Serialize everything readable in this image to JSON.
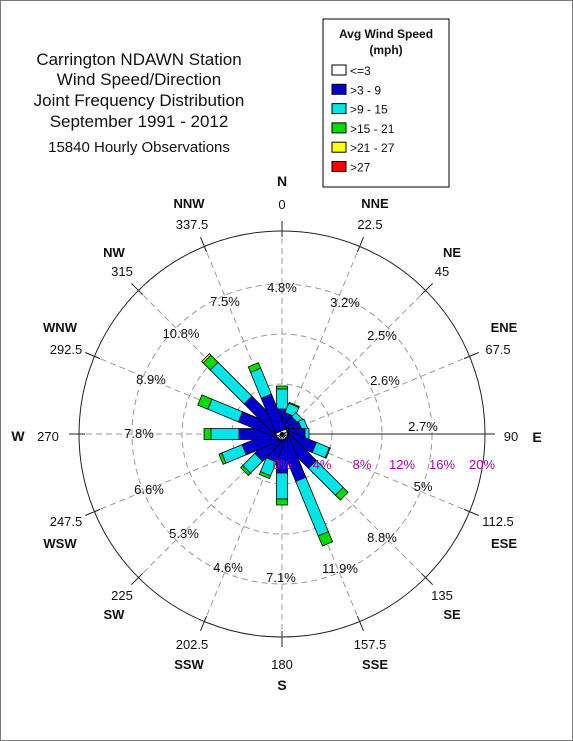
{
  "title": {
    "lines": [
      "Carrington NDAWN Station",
      "Wind Speed/Direction",
      "Joint Frequency Distribution",
      "September 1991 - 2012"
    ],
    "subtitle": "15840 Hourly Observations"
  },
  "legend": {
    "title_lines": [
      "Avg Wind Speed",
      "(mph)"
    ],
    "items": [
      {
        "label": "<=3",
        "color": "#ffffff"
      },
      {
        "label": ">3 - 9",
        "color": "#0000cc"
      },
      {
        "label": ">9 - 15",
        "color": "#00e5e5"
      },
      {
        "label": ">15 - 21",
        "color": "#00dd00"
      },
      {
        "label": ">21 - 27",
        "color": "#ffff00"
      },
      {
        "label": ">27",
        "color": "#ff0000"
      }
    ]
  },
  "compass": [
    {
      "name": "N",
      "deg": "0"
    },
    {
      "name": "NNE",
      "deg": "22.5"
    },
    {
      "name": "NE",
      "deg": "45"
    },
    {
      "name": "ENE",
      "deg": "67.5"
    },
    {
      "name": "E",
      "deg": "90"
    },
    {
      "name": "ESE",
      "deg": "112.5"
    },
    {
      "name": "SE",
      "deg": "135"
    },
    {
      "name": "SSE",
      "deg": "157.5"
    },
    {
      "name": "S",
      "deg": "180"
    },
    {
      "name": "SSW",
      "deg": "202.5"
    },
    {
      "name": "SW",
      "deg": "225"
    },
    {
      "name": "WSW",
      "deg": "247.5"
    },
    {
      "name": "W",
      "deg": "270"
    },
    {
      "name": "WNW",
      "deg": "292.5"
    },
    {
      "name": "NW",
      "deg": "315"
    },
    {
      "name": "NNW",
      "deg": "337.5"
    }
  ],
  "chart_data": {
    "type": "wind rose (polar stacked bar)",
    "radial_axis": {
      "ticks": [
        0,
        4,
        8,
        12,
        16,
        20
      ],
      "tick_labels": [
        "0%",
        "4%",
        "8%",
        "12%",
        "16%",
        "20%"
      ],
      "max": 20,
      "unit": "%"
    },
    "speed_classes": [
      "<=3",
      ">3 - 9",
      ">9 - 15",
      ">15 - 21",
      ">21 - 27",
      ">27"
    ],
    "directions": [
      {
        "dir": "N",
        "total": 4.8,
        "segments": [
          0.3,
          2.2,
          2.0,
          0.3,
          0.0,
          0.0
        ]
      },
      {
        "dir": "NNE",
        "total": 3.2,
        "segments": [
          0.3,
          1.8,
          1.0,
          0.1,
          0.0,
          0.0
        ]
      },
      {
        "dir": "NE",
        "total": 2.5,
        "segments": [
          0.3,
          1.6,
          0.6,
          0.0,
          0.0,
          0.0
        ]
      },
      {
        "dir": "ENE",
        "total": 2.6,
        "segments": [
          0.3,
          1.7,
          0.6,
          0.0,
          0.0,
          0.0
        ]
      },
      {
        "dir": "E",
        "total": 2.7,
        "segments": [
          0.3,
          2.0,
          0.4,
          0.0,
          0.0,
          0.0
        ]
      },
      {
        "dir": "ESE",
        "total": 5.0,
        "segments": [
          0.3,
          3.2,
          1.4,
          0.1,
          0.0,
          0.0
        ]
      },
      {
        "dir": "SE",
        "total": 8.8,
        "segments": [
          0.3,
          4.0,
          3.8,
          0.7,
          0.0,
          0.0
        ]
      },
      {
        "dir": "SSE",
        "total": 11.9,
        "segments": [
          0.3,
          4.6,
          5.9,
          1.1,
          0.0,
          0.0
        ]
      },
      {
        "dir": "S",
        "total": 7.1,
        "segments": [
          0.3,
          3.6,
          2.6,
          0.6,
          0.0,
          0.0
        ]
      },
      {
        "dir": "SSW",
        "total": 4.6,
        "segments": [
          0.3,
          2.5,
          1.5,
          0.3,
          0.0,
          0.0
        ]
      },
      {
        "dir": "SW",
        "total": 5.3,
        "segments": [
          0.3,
          3.0,
          1.7,
          0.3,
          0.0,
          0.0
        ]
      },
      {
        "dir": "WSW",
        "total": 6.6,
        "segments": [
          0.3,
          3.8,
          2.2,
          0.3,
          0.0,
          0.0
        ]
      },
      {
        "dir": "W",
        "total": 7.8,
        "segments": [
          0.3,
          4.0,
          2.8,
          0.7,
          0.0,
          0.0
        ]
      },
      {
        "dir": "WNW",
        "total": 8.9,
        "segments": [
          0.3,
          4.2,
          3.3,
          1.1,
          0.0,
          0.0
        ]
      },
      {
        "dir": "NW",
        "total": 10.8,
        "segments": [
          0.3,
          4.5,
          4.8,
          1.0,
          0.2,
          0.0
        ]
      },
      {
        "dir": "NNW",
        "total": 7.5,
        "segments": [
          0.3,
          3.8,
          2.8,
          0.6,
          0.0,
          0.0
        ]
      }
    ]
  }
}
